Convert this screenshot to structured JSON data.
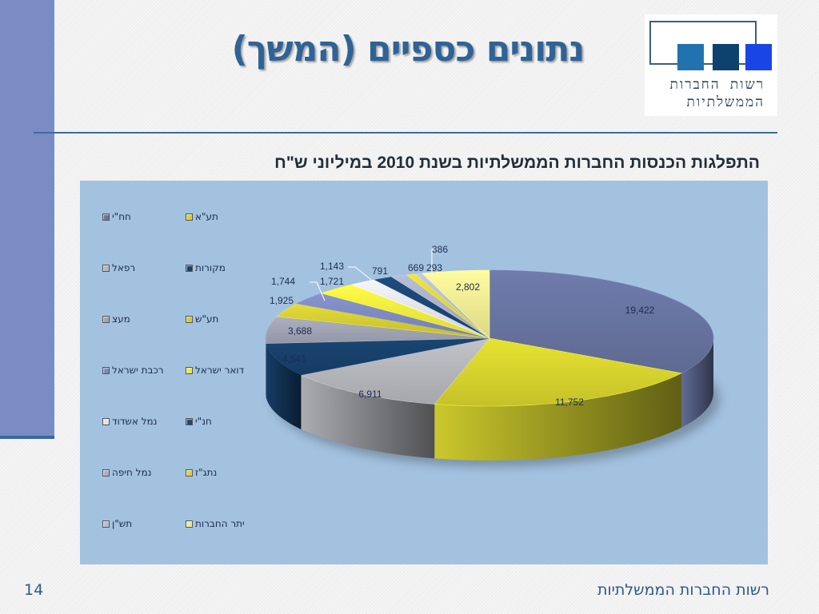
{
  "slide": {
    "title": "נתונים כספיים (המשך)",
    "footer": "רשות החברות הממשלתיות",
    "page_number": "14"
  },
  "logo": {
    "line1": "רשות החברות",
    "line2": "הממשלתיות",
    "square_colors": [
      "#2272b0",
      "#0d426f",
      "#1a45e6"
    ]
  },
  "chart_data": {
    "type": "pie",
    "title": "התפלגות הכנסות החברות הממשלתיות בשנת 2010 במיליוני ש\"ח",
    "style": "3d-exploded-none",
    "legend_position": "left",
    "categories": [
      "חח\"י",
      "תע\"א",
      "רפאל",
      "מקורות",
      "מעצ",
      "תע\"ש",
      "רכבת ישראל",
      "דואר ישראל",
      "נמל אשדוד",
      "חנ\"י",
      "נמל חיפה",
      "נתג\"ז",
      "תש\"ן",
      "יתר החברות"
    ],
    "values": [
      19422,
      11752,
      6911,
      4541,
      3688,
      1925,
      1744,
      1721,
      1143,
      791,
      669,
      386,
      293,
      2802
    ],
    "labels": [
      "19,422",
      "11,752",
      "6,911",
      "4,541",
      "3,688",
      "1,925",
      "1,744",
      "1,721",
      "1,143",
      "791",
      "669",
      "386",
      "293",
      "2,802"
    ],
    "colors": [
      "#67739f",
      "#d6d22e",
      "#b3b5ba",
      "#17406a",
      "#9fa3b3",
      "#d4cc33",
      "#7d8ac0",
      "#eeea3f",
      "#e3e4e8",
      "#1b4673",
      "#aab0c8",
      "#ddd538",
      "#b6bbd0",
      "#eeea93"
    ],
    "legend": [
      {
        "label": "חח\"י",
        "color": "#67739f"
      },
      {
        "label": "תע\"א",
        "color": "#d6d22e"
      },
      {
        "label": "רפאל",
        "color": "#b3b5ba"
      },
      {
        "label": "מקורות",
        "color": "#17406a"
      },
      {
        "label": "מעצ",
        "color": "#9fa3b3"
      },
      {
        "label": "תע\"ש",
        "color": "#d4cc33"
      },
      {
        "label": "רכבת ישראל",
        "color": "#7d8ac0"
      },
      {
        "label": "דואר ישראל",
        "color": "#eeea3f"
      },
      {
        "label": "נמל אשדוד",
        "color": "#e3e4e8"
      },
      {
        "label": "חנ\"י",
        "color": "#1b4673"
      },
      {
        "label": "נמל חיפה",
        "color": "#aab0c8"
      },
      {
        "label": "נתג\"ז",
        "color": "#ddd538"
      },
      {
        "label": "תש\"ן",
        "color": "#b6bbd0"
      },
      {
        "label": "יתר החברות",
        "color": "#eeea93"
      }
    ]
  }
}
